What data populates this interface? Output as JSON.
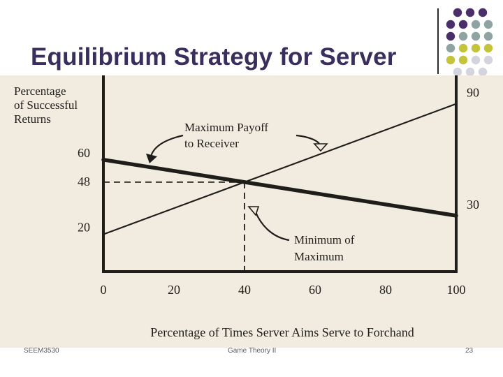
{
  "slide": {
    "title": "Equilibrium Strategy for Server",
    "footer_left": "SEEM3530",
    "footer_center": "Game Theory II",
    "footer_right": "23"
  },
  "colors": {
    "title": "#3a2e5e",
    "dot_purple": "#4a2e6a",
    "dot_teal": "#8fa3a3",
    "dot_olive": "#c4c43a",
    "dot_light": "#d4d4de",
    "paper": "#f2ece0",
    "ink": "#1f1d1a"
  },
  "decoration": {
    "dot_rows": [
      [
        "purple",
        "purple",
        "purple"
      ],
      [
        "purple",
        "purple",
        "teal",
        "teal"
      ],
      [
        "purple",
        "teal",
        "teal",
        "teal"
      ],
      [
        "teal",
        "olive",
        "olive",
        "olive"
      ],
      [
        "olive",
        "olive",
        "light",
        "light"
      ],
      [
        "light",
        "light",
        "light"
      ]
    ]
  },
  "chart_data": {
    "type": "line",
    "ylabel": [
      "Percentage",
      "of Successful",
      "Returns"
    ],
    "xlabel": "Percentage of Times Server Aims Serve to Forchand",
    "xlim": [
      0,
      100
    ],
    "ylim": [
      0,
      100
    ],
    "x_ticks": [
      0,
      20,
      40,
      60,
      80,
      100
    ],
    "series": [
      {
        "values": [
          [
            0,
            60
          ],
          [
            100,
            30
          ]
        ]
      },
      {
        "values": [
          [
            0,
            20
          ],
          [
            100,
            90
          ]
        ]
      }
    ],
    "left_axis_labels": [
      60,
      48,
      20
    ],
    "right_axis_labels": [
      90,
      30
    ],
    "annotations": [
      {
        "text": [
          "Maximum Payoff",
          "to Receiver"
        ]
      },
      {
        "text": [
          "Minimum of",
          "Maximum"
        ]
      }
    ],
    "equilibrium": {
      "x": 40,
      "y": 48
    }
  }
}
